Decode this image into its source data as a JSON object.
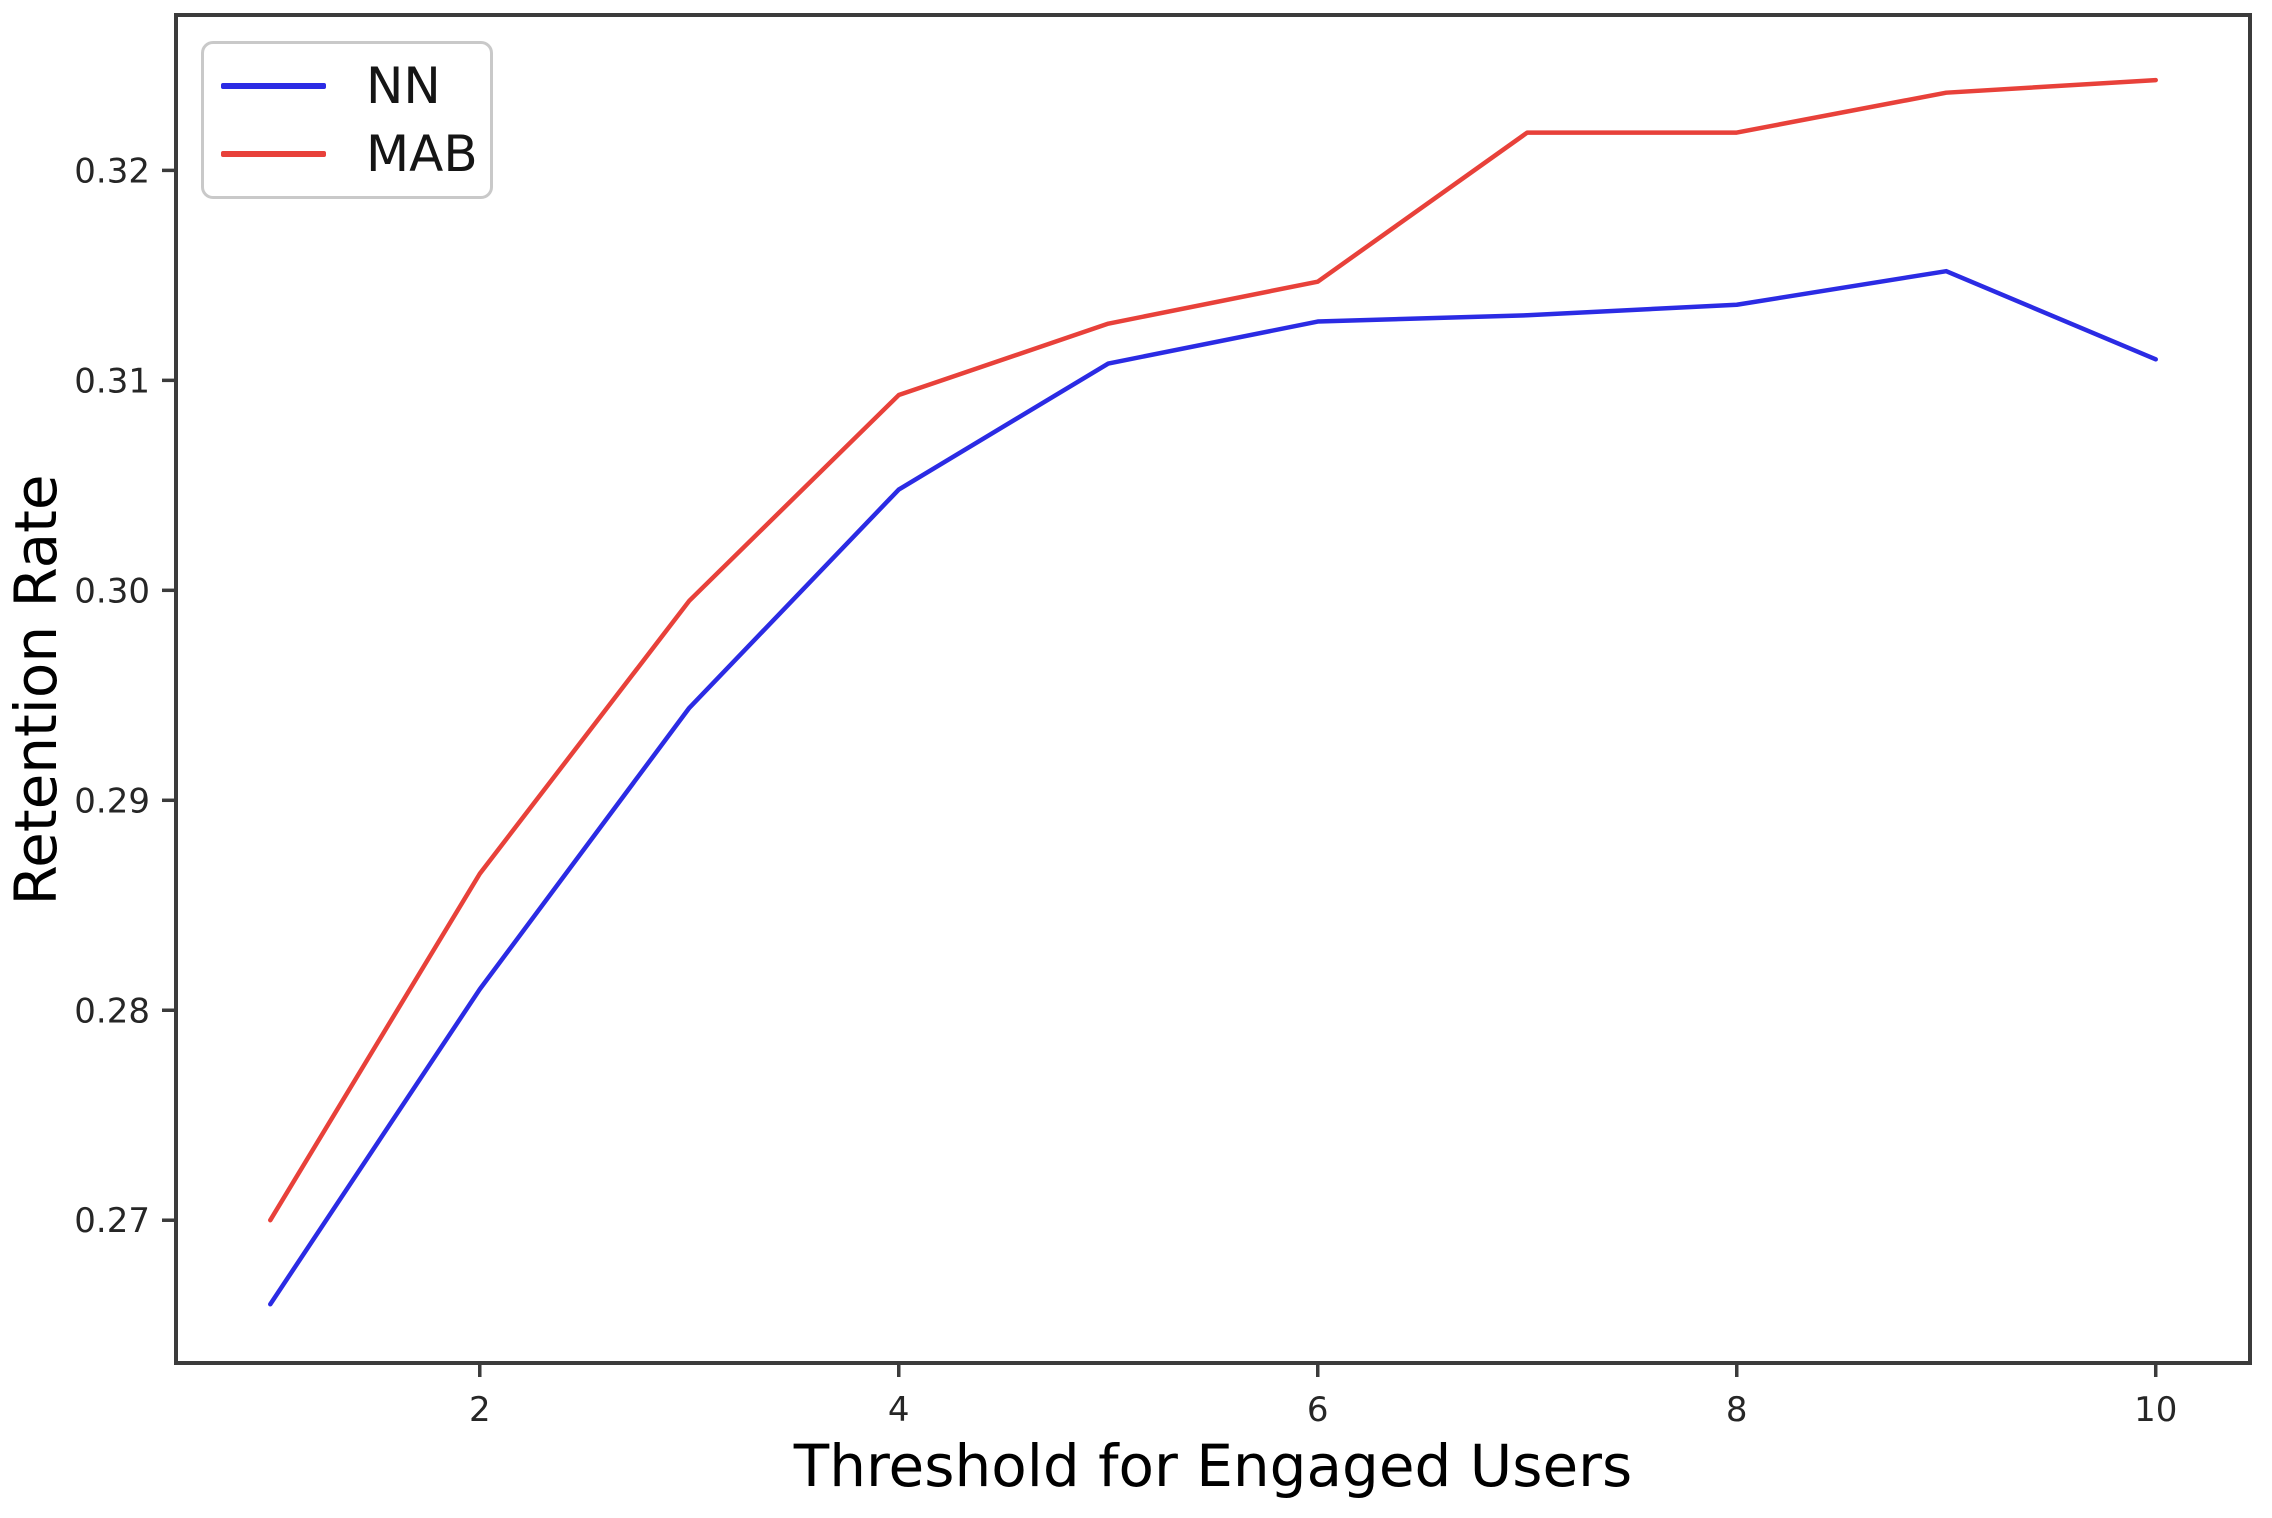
{
  "chart_data": {
    "type": "line",
    "title": "",
    "xlabel": "Threshold for Engaged Users",
    "ylabel": "Retention Rate",
    "x": [
      1,
      2,
      3,
      4,
      5,
      6,
      7,
      8,
      9,
      10
    ],
    "series": [
      {
        "name": "NN",
        "color": "#2b2be4",
        "values": [
          0.266,
          0.281,
          0.2944,
          0.3048,
          0.3108,
          0.3128,
          0.3131,
          0.3136,
          0.3152,
          0.311
        ]
      },
      {
        "name": "MAB",
        "color": "#e8413a",
        "values": [
          0.27,
          0.2865,
          0.2995,
          0.3093,
          0.3127,
          0.3147,
          0.3218,
          0.3218,
          0.3237,
          0.3243
        ]
      }
    ],
    "xlim": [
      0.55,
      10.45
    ],
    "ylim": [
      0.2632,
      0.3274
    ],
    "x_ticks": {
      "values": [
        2,
        4,
        6,
        8,
        10
      ],
      "labels": [
        "2",
        "4",
        "6",
        "8",
        "10"
      ]
    },
    "y_ticks": {
      "values": [
        0.27,
        0.28,
        0.29,
        0.3,
        0.31,
        0.32
      ],
      "labels": [
        "0.27",
        "0.28",
        "0.29",
        "0.30",
        "0.31",
        "0.32"
      ]
    },
    "legend": {
      "position": "upper left",
      "entries": [
        "NN",
        "MAB"
      ]
    },
    "grid": false
  },
  "colors": {
    "spine": "#3b3b3b",
    "tick_label": "#262626",
    "legend_border": "#c9c9c9",
    "background": "#ffffff"
  }
}
